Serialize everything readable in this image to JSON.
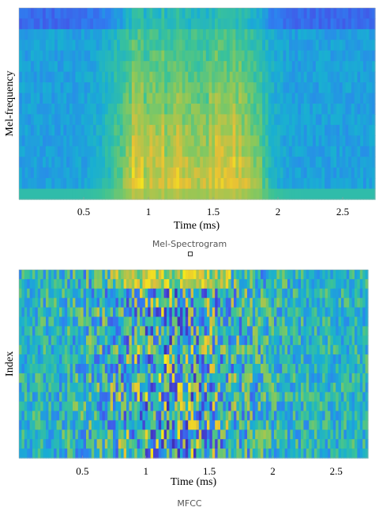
{
  "chart_data": [
    {
      "type": "heatmap",
      "title": "",
      "xlabel": "Time (ms)",
      "ylabel": "Mel-frequency",
      "xlim": [
        0.0,
        2.75
      ],
      "xticks": [
        0.5,
        1,
        1.5,
        2,
        2.5
      ],
      "xtick_labels": [
        "0.5",
        "1",
        "1.5",
        "2",
        "2.5"
      ],
      "colormap": "parula",
      "caption": "Mel-Spectrogram"
    },
    {
      "type": "heatmap",
      "title": "",
      "xlabel": "Time (ms)",
      "ylabel": "Index",
      "xlim": [
        0.0,
        2.75
      ],
      "xticks": [
        0.5,
        1,
        1.5,
        2,
        2.5
      ],
      "xtick_labels": [
        "0.5",
        "1",
        "1.5",
        "2",
        "2.5"
      ],
      "colormap": "parula",
      "caption": "MFCC"
    }
  ]
}
